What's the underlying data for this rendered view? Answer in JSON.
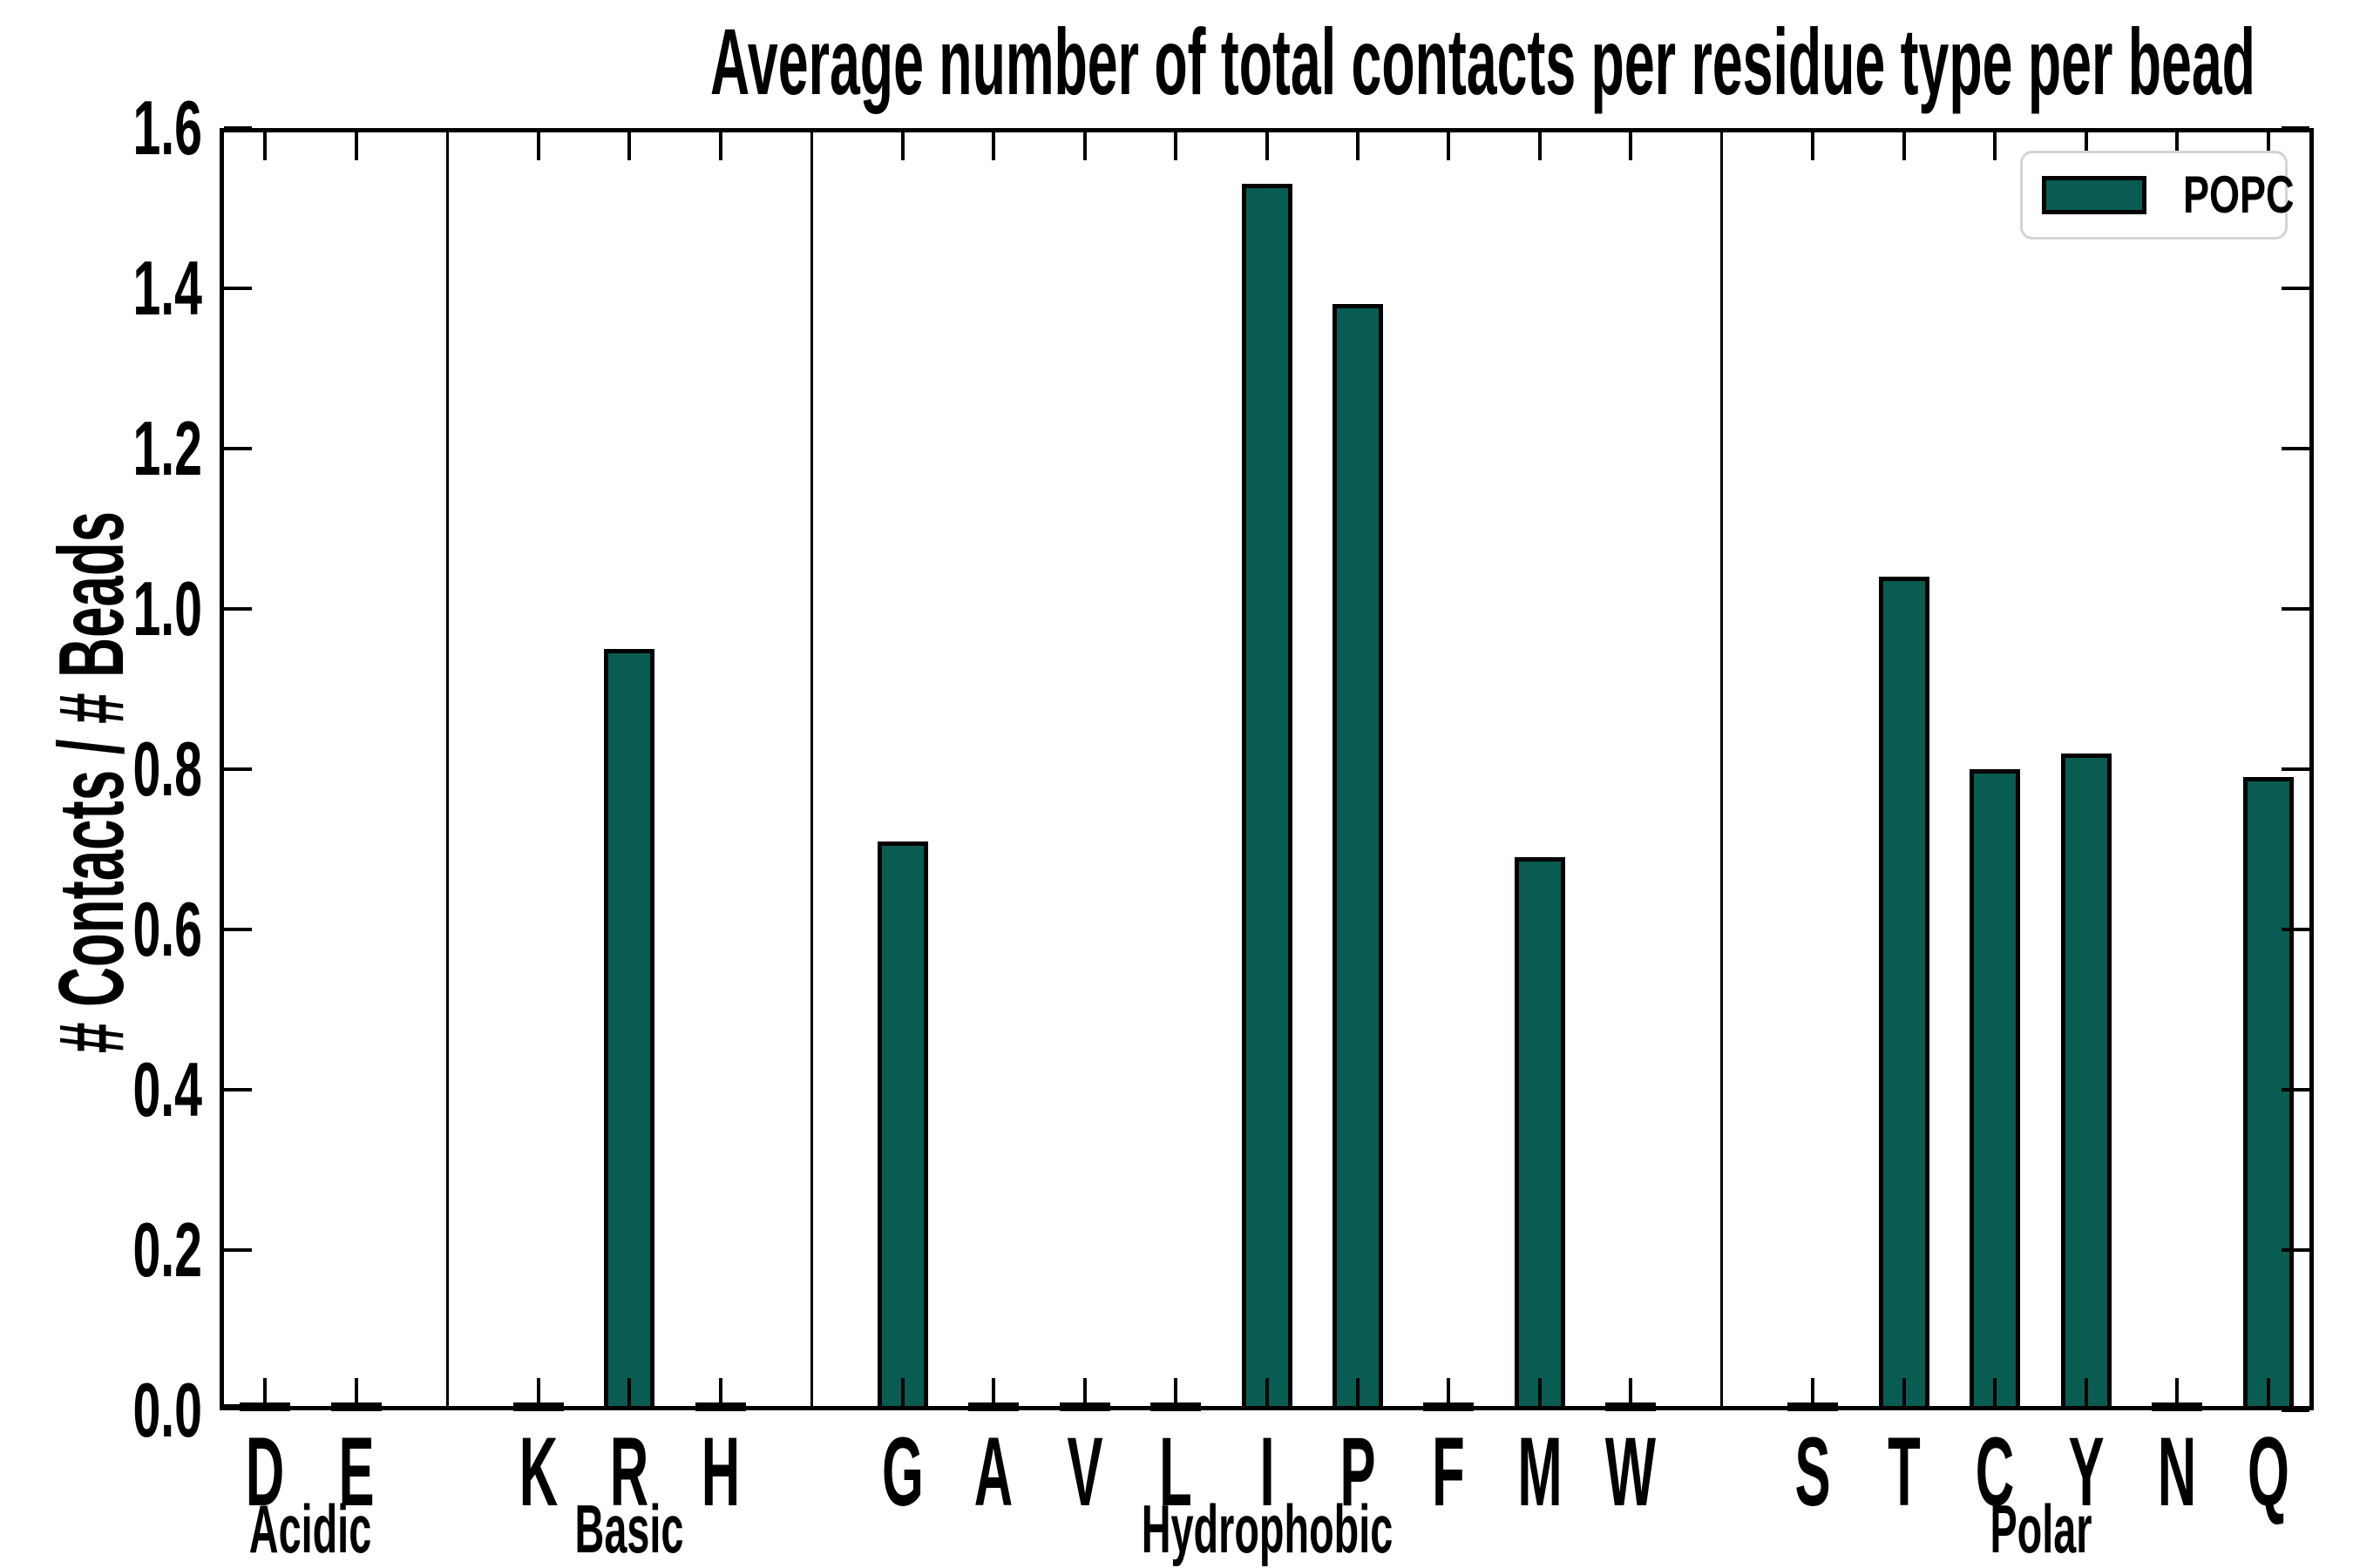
{
  "chart_data": {
    "type": "bar",
    "title": "Average number of total contacts per residue type per bead",
    "ylabel": "# Contacts / # Beads",
    "xlabel": "",
    "ylim": [
      0.0,
      1.6
    ],
    "ytick_step": 0.2,
    "ytick_labels": [
      "0.0",
      "0.2",
      "0.4",
      "0.6",
      "0.8",
      "1.0",
      "1.2",
      "1.4",
      "1.6"
    ],
    "grid": false,
    "legend": {
      "label": "POPC",
      "position": "upper-right"
    },
    "bar_color": "#095c51",
    "bar_edge_color": "#000000",
    "legend_border_color": "#d4d4d4",
    "groups": [
      {
        "label": "Acidic",
        "categories": [
          "D",
          "E"
        ],
        "values": [
          0.005,
          0.005
        ]
      },
      {
        "label": "Basic",
        "categories": [
          "K",
          "R",
          "H"
        ],
        "values": [
          0.005,
          0.95,
          0.005
        ]
      },
      {
        "label": "Hydrophobic",
        "categories": [
          "G",
          "A",
          "V",
          "L",
          "I",
          "P",
          "F",
          "M",
          "W"
        ],
        "values": [
          0.71,
          0.005,
          0.005,
          0.005,
          1.53,
          1.38,
          0.005,
          0.69,
          0.005
        ]
      },
      {
        "label": "Polar",
        "categories": [
          "S",
          "T",
          "C",
          "Y",
          "N",
          "Q"
        ],
        "values": [
          0.005,
          1.04,
          0.8,
          0.82,
          0.005,
          0.79
        ]
      }
    ]
  }
}
